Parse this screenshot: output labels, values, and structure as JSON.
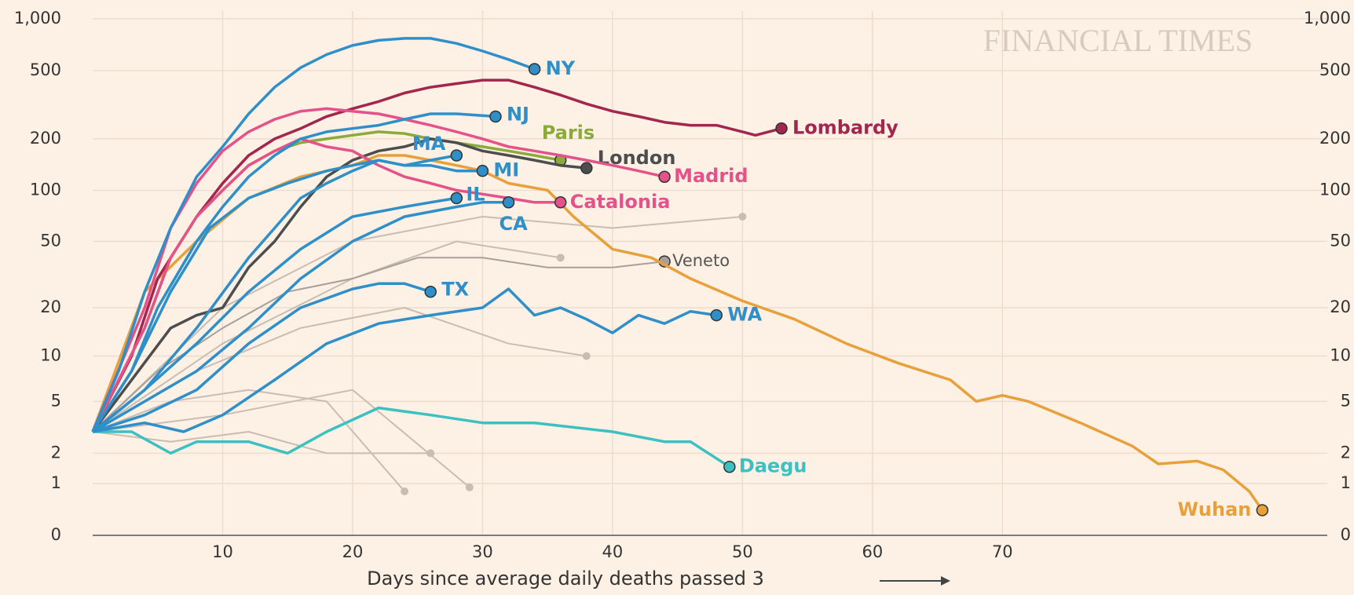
{
  "chart_data": {
    "type": "line",
    "watermark": "FINANCIAL TIMES",
    "x_label": "Days since average daily deaths passed 3",
    "yscale": "log1p",
    "grid": true,
    "xlim": [
      0,
      95
    ],
    "xticks": [
      10,
      20,
      30,
      40,
      50,
      60,
      70
    ],
    "ylim": [
      0,
      1000
    ],
    "yticks": [
      0,
      1,
      2,
      5,
      10,
      20,
      50,
      100,
      200,
      500,
      {
        "value": 1000,
        "label": "1,000"
      }
    ],
    "series": [
      {
        "color": "#c9bdb3",
        "x": [
          0,
          10,
          20,
          30,
          40,
          50
        ],
        "values": [
          3,
          20,
          50,
          70,
          60,
          70
        ]
      },
      {
        "color": "#c9bdb3",
        "x": [
          0,
          8,
          16,
          24,
          32,
          38
        ],
        "values": [
          3,
          8,
          15,
          20,
          12,
          10
        ]
      },
      {
        "color": "#c9bdb3",
        "x": [
          0,
          6,
          12,
          18,
          24
        ],
        "values": [
          3,
          5,
          6,
          5,
          0.8
        ]
      },
      {
        "color": "#c9bdb3",
        "x": [
          0,
          10,
          20,
          29
        ],
        "values": [
          3,
          4,
          6,
          0.9
        ]
      },
      {
        "color": "#c9bdb3",
        "x": [
          0,
          10,
          20,
          28,
          36
        ],
        "values": [
          3,
          12,
          30,
          50,
          40
        ]
      },
      {
        "color": "#c9bdb3",
        "x": [
          0,
          6,
          12,
          18,
          26
        ],
        "values": [
          3,
          2.5,
          3,
          2,
          2
        ]
      },
      {
        "name": "Veneto",
        "color": "#a8a09a",
        "x": [
          0,
          5,
          10,
          15,
          20,
          25,
          30,
          35,
          40,
          44
        ],
        "values": [
          3,
          8,
          15,
          25,
          30,
          40,
          40,
          35,
          35,
          38
        ]
      },
      {
        "name": "Wuhan",
        "color": "#e8a13a",
        "x": [
          0,
          4,
          8,
          12,
          16,
          20,
          22,
          24,
          26,
          28,
          30,
          32,
          35,
          37,
          40,
          43,
          46,
          50,
          54,
          58,
          62,
          66,
          68,
          70,
          72,
          76,
          80,
          82,
          85,
          87,
          89,
          90
        ],
        "values": [
          3,
          25,
          50,
          90,
          120,
          140,
          160,
          160,
          150,
          140,
          130,
          110,
          100,
          70,
          45,
          40,
          30,
          22,
          17,
          12,
          9,
          7,
          5,
          5.5,
          5,
          3.5,
          2.3,
          1.6,
          1.7,
          1.4,
          0.8,
          0.4
        ]
      },
      {
        "name": "Daegu",
        "color": "#3cc0c0",
        "x": [
          0,
          3,
          6,
          8,
          12,
          15,
          18,
          22,
          26,
          30,
          34,
          40,
          44,
          46,
          49
        ],
        "values": [
          3,
          3,
          2,
          2.5,
          2.5,
          2,
          3,
          4.5,
          4,
          3.5,
          3.5,
          3,
          2.5,
          2.5,
          1.5
        ]
      },
      {
        "name": "Lombardy",
        "color": "#a3264f",
        "x": [
          0,
          3,
          5,
          8,
          10,
          12,
          14,
          16,
          18,
          20,
          22,
          24,
          26,
          28,
          30,
          32,
          34,
          36,
          38,
          40,
          42,
          44,
          46,
          48,
          50,
          51,
          53
        ],
        "values": [
          3,
          10,
          30,
          70,
          110,
          160,
          200,
          230,
          270,
          300,
          330,
          370,
          400,
          420,
          440,
          440,
          400,
          360,
          320,
          290,
          270,
          250,
          240,
          240,
          220,
          210,
          230
        ]
      },
      {
        "name": "Paris",
        "color": "#8aab3a",
        "x": [
          0,
          4,
          6,
          8,
          10,
          12,
          14,
          16,
          18,
          20,
          22,
          24,
          26,
          28,
          30,
          32,
          34,
          36
        ],
        "values": [
          3,
          15,
          40,
          70,
          100,
          140,
          170,
          190,
          200,
          210,
          220,
          215,
          200,
          190,
          180,
          170,
          160,
          150
        ]
      },
      {
        "name": "London",
        "color": "#4d4d4d",
        "x": [
          0,
          6,
          8,
          10,
          12,
          14,
          16,
          18,
          20,
          22,
          24,
          26,
          28,
          30,
          32,
          34,
          36,
          38
        ],
        "values": [
          3,
          15,
          18,
          20,
          35,
          50,
          80,
          120,
          150,
          170,
          180,
          200,
          190,
          170,
          160,
          150,
          140,
          135
        ]
      },
      {
        "name": "Madrid",
        "color": "#e5528a",
        "x": [
          0,
          4,
          6,
          8,
          10,
          12,
          14,
          16,
          18,
          20,
          22,
          24,
          26,
          28,
          30,
          32,
          34,
          36,
          38,
          40,
          42,
          44
        ],
        "values": [
          3,
          20,
          60,
          110,
          170,
          220,
          260,
          290,
          300,
          290,
          280,
          260,
          240,
          220,
          200,
          180,
          170,
          160,
          150,
          140,
          130,
          120
        ]
      },
      {
        "name": "Catalonia",
        "color": "#e5528a",
        "x": [
          0,
          4,
          6,
          8,
          10,
          12,
          14,
          16,
          18,
          20,
          22,
          24,
          26,
          28,
          30,
          32,
          34,
          36
        ],
        "values": [
          3,
          15,
          40,
          70,
          100,
          140,
          170,
          200,
          180,
          170,
          140,
          120,
          110,
          100,
          95,
          90,
          85,
          85
        ]
      },
      {
        "name": "WA",
        "color": "#2f8fc9",
        "x": [
          0,
          4,
          7,
          10,
          14,
          18,
          22,
          26,
          30,
          32,
          34,
          36,
          38,
          40,
          42,
          44,
          46,
          48
        ],
        "values": [
          3,
          3.5,
          3,
          4,
          7,
          12,
          16,
          18,
          20,
          26,
          18,
          20,
          17,
          14,
          18,
          16,
          19,
          18
        ]
      },
      {
        "name": "TX",
        "color": "#2f8fc9",
        "x": [
          0,
          4,
          8,
          12,
          16,
          20,
          22,
          24,
          26
        ],
        "values": [
          3,
          4,
          6,
          12,
          20,
          26,
          28,
          28,
          25
        ]
      },
      {
        "name": "CA",
        "color": "#2f8fc9",
        "x": [
          0,
          4,
          8,
          12,
          16,
          20,
          24,
          28,
          30,
          32
        ],
        "values": [
          3,
          5,
          8,
          15,
          30,
          50,
          70,
          80,
          85,
          85
        ]
      },
      {
        "name": "IL",
        "color": "#2f8fc9",
        "x": [
          0,
          4,
          8,
          12,
          16,
          20,
          24,
          26,
          28
        ],
        "values": [
          3,
          6,
          12,
          25,
          45,
          70,
          80,
          85,
          90
        ]
      },
      {
        "name": "MI",
        "color": "#2f8fc9",
        "x": [
          0,
          3,
          6,
          9,
          12,
          15,
          18,
          20,
          22,
          24,
          26,
          28,
          30
        ],
        "values": [
          3,
          8,
          25,
          60,
          90,
          110,
          130,
          140,
          150,
          140,
          140,
          130,
          130
        ]
      },
      {
        "name": "MA",
        "color": "#2f8fc9",
        "x": [
          0,
          4,
          8,
          12,
          14,
          16,
          18,
          20,
          22,
          24,
          26,
          28
        ],
        "values": [
          3,
          6,
          15,
          40,
          60,
          90,
          110,
          130,
          150,
          140,
          150,
          160
        ]
      },
      {
        "name": "NJ",
        "color": "#2f8fc9",
        "x": [
          0,
          3,
          5,
          8,
          10,
          12,
          14,
          16,
          18,
          20,
          22,
          24,
          26,
          28,
          31
        ],
        "values": [
          3,
          8,
          20,
          50,
          80,
          120,
          160,
          200,
          220,
          230,
          240,
          260,
          280,
          280,
          270
        ]
      },
      {
        "name": "NY",
        "color": "#2f8fc9",
        "x": [
          0,
          2,
          4,
          6,
          8,
          10,
          12,
          14,
          16,
          18,
          20,
          22,
          24,
          26,
          28,
          30,
          32,
          34
        ],
        "values": [
          3,
          8,
          25,
          60,
          120,
          180,
          280,
          400,
          520,
          620,
          700,
          750,
          770,
          770,
          720,
          650,
          580,
          510
        ]
      }
    ]
  }
}
